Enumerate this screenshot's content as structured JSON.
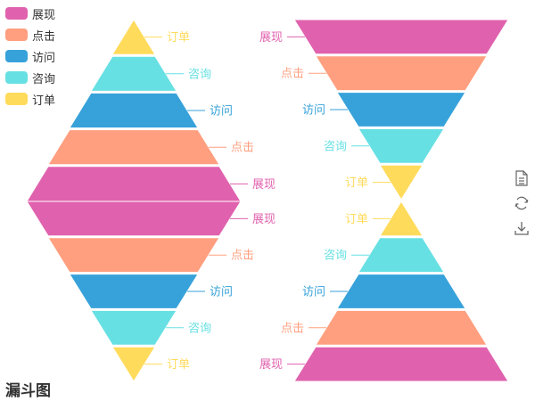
{
  "chart_data": {
    "type": "funnel",
    "title": "漏斗图",
    "legend": {
      "placement": "top-left",
      "items": [
        {
          "name": "展现",
          "color": "#e062ae"
        },
        {
          "name": "点击",
          "color": "#ff9f7f"
        },
        {
          "name": "访问",
          "color": "#37a2da"
        },
        {
          "name": "咨询",
          "color": "#67e0e3"
        },
        {
          "name": "订单",
          "color": "#ffdb5c"
        }
      ]
    },
    "toolbox": [
      "save-as-image-icon",
      "restore-icon",
      "download-icon"
    ],
    "funnels": [
      {
        "position": "top-left",
        "sort": "ascending",
        "label_side": "right",
        "data": [
          {
            "name": "订单",
            "value": 20
          },
          {
            "name": "咨询",
            "value": 40
          },
          {
            "name": "访问",
            "value": 60
          },
          {
            "name": "点击",
            "value": 80
          },
          {
            "name": "展现",
            "value": 100
          }
        ]
      },
      {
        "position": "bottom-left",
        "sort": "descending",
        "label_side": "right",
        "data": [
          {
            "name": "展现",
            "value": 100
          },
          {
            "name": "点击",
            "value": 80
          },
          {
            "name": "访问",
            "value": 60
          },
          {
            "name": "咨询",
            "value": 40
          },
          {
            "name": "订单",
            "value": 20
          }
        ]
      },
      {
        "position": "top-right",
        "sort": "descending",
        "label_side": "left",
        "data": [
          {
            "name": "展现",
            "value": 100
          },
          {
            "name": "点击",
            "value": 80
          },
          {
            "name": "访问",
            "value": 60
          },
          {
            "name": "咨询",
            "value": 40
          },
          {
            "name": "订单",
            "value": 20
          }
        ]
      },
      {
        "position": "bottom-right",
        "sort": "ascending",
        "label_side": "left",
        "data": [
          {
            "name": "订单",
            "value": 20
          },
          {
            "name": "咨询",
            "value": 40
          },
          {
            "name": "访问",
            "value": 60
          },
          {
            "name": "点击",
            "value": 80
          },
          {
            "name": "展现",
            "value": 100
          }
        ]
      }
    ]
  }
}
